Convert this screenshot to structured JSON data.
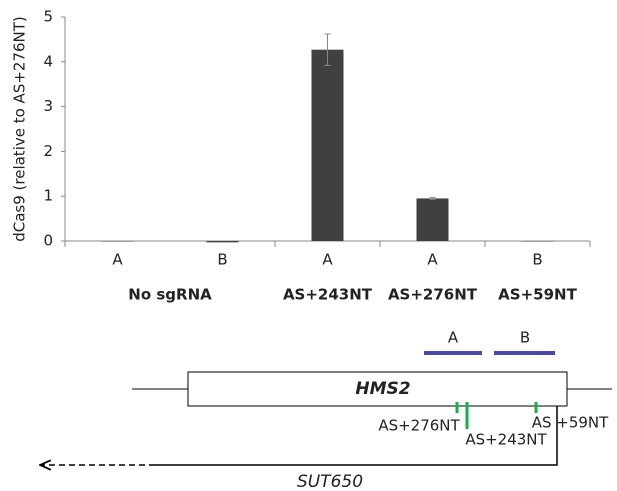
{
  "chart_data": {
    "type": "bar",
    "ylabel": "dCas9 (relative to AS+276NT)",
    "categories": [
      "A",
      "B",
      "A",
      "A",
      "B"
    ],
    "group_labels": [
      "No sgRNA",
      "AS+243NT",
      "AS+276NT",
      "AS+59NT"
    ],
    "values": [
      0,
      -0.03,
      4.27,
      0.95,
      0
    ],
    "errors": [
      null,
      null,
      0.35,
      0.02,
      null
    ],
    "color": "#404040",
    "ylim": [
      0,
      5
    ],
    "yticks": [
      0,
      1,
      2,
      3,
      4,
      5
    ]
  },
  "diagram": {
    "region_a": "A",
    "region_b": "B",
    "gene": "HMS2",
    "site_276": "AS+276NT",
    "site_243": "AS+243NT",
    "site_59": "AS +59NT",
    "transcript": "SUT650"
  }
}
